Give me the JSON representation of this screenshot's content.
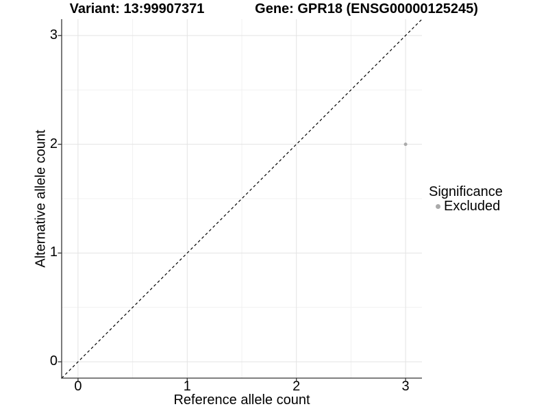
{
  "chart_data": {
    "type": "scatter",
    "title_left": "Variant: 13:99907371",
    "title_right": "Gene: GPR18 (ENSG00000125245)",
    "xlabel": "Reference allele count",
    "ylabel": "Alternative allele count",
    "x_ticks": [
      0,
      1,
      2,
      3
    ],
    "y_ticks": [
      0,
      1,
      2,
      3
    ],
    "x_minor_gridlines": [
      0.5,
      1.5,
      2.5
    ],
    "y_minor_gridlines": [
      0.5,
      1.5,
      2.5
    ],
    "xlim": [
      -0.15,
      3.15
    ],
    "ylim": [
      -0.15,
      3.15
    ],
    "grid": "major+minor",
    "reference_line": {
      "kind": "identity y=x",
      "style": "dashed",
      "color": "#000000"
    },
    "series": [
      {
        "name": "Excluded",
        "color": "#aaaaaa",
        "points": [
          {
            "x": 3,
            "y": 2
          }
        ]
      }
    ],
    "legend": {
      "title": "Significance",
      "position": "right",
      "entries": [
        {
          "label": "Excluded",
          "color": "#aaaaaa"
        }
      ]
    }
  },
  "colors": {
    "background": "#ffffff",
    "grid_major": "#e3e3e3",
    "grid_minor": "#f1f1f1",
    "axis": "#333333",
    "text": "#000000"
  }
}
